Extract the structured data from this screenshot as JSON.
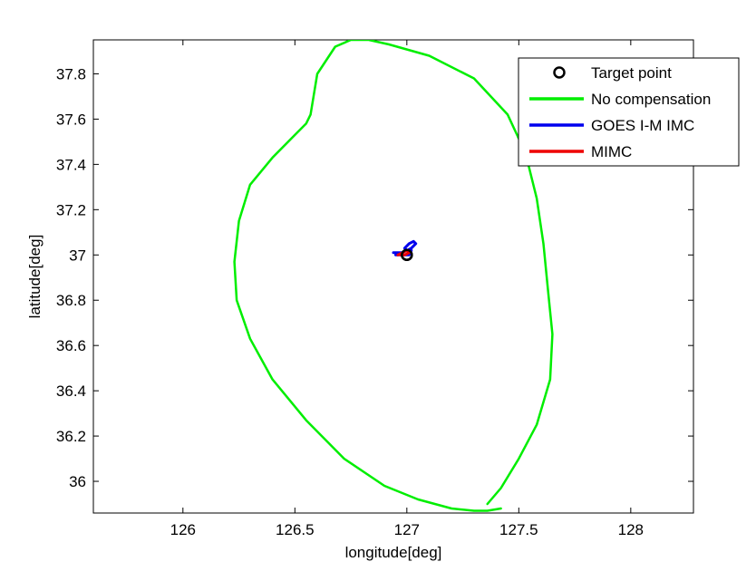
{
  "chart_data": {
    "type": "line",
    "title": "",
    "xlabel": "longitude[deg]",
    "ylabel": "latitude[deg]",
    "xlim": [
      125.6,
      128.28
    ],
    "ylim": [
      35.86,
      37.95
    ],
    "xticks": [
      126,
      126.5,
      127,
      127.5,
      128
    ],
    "xtick_labels": [
      "126",
      "126.5",
      "127",
      "127.5",
      "128"
    ],
    "yticks": [
      36,
      36.2,
      36.4,
      36.6,
      36.8,
      37,
      37.2,
      37.4,
      37.6,
      37.8
    ],
    "ytick_labels": [
      "36",
      "36.2",
      "36.4",
      "36.6",
      "36.8",
      "37",
      "37.2",
      "37.4",
      "37.6",
      "37.8"
    ],
    "grid": false,
    "legend_position": "top-right",
    "series": [
      {
        "name": "Target point",
        "kind": "marker",
        "color": "#000000",
        "x": [
          127.0
        ],
        "y": [
          37.0
        ]
      },
      {
        "name": "No compensation",
        "kind": "line",
        "color": "#00ee00",
        "x": [
          127.36,
          127.42,
          127.5,
          127.58,
          127.64,
          127.65,
          127.63,
          127.61,
          127.58,
          127.53,
          127.45,
          127.3,
          127.1,
          126.92,
          126.83,
          126.75,
          126.68,
          126.6,
          126.57,
          126.55,
          126.5,
          126.4,
          126.3,
          126.25,
          126.23,
          126.24,
          126.3,
          126.4,
          126.55,
          126.72,
          126.9,
          127.05,
          127.2,
          127.3,
          127.36,
          127.42
        ],
        "y": [
          35.9,
          35.97,
          36.1,
          36.25,
          36.45,
          36.65,
          36.85,
          37.05,
          37.25,
          37.45,
          37.62,
          37.78,
          37.88,
          37.93,
          37.95,
          37.95,
          37.92,
          37.8,
          37.62,
          37.58,
          37.53,
          37.43,
          37.31,
          37.15,
          36.97,
          36.8,
          36.63,
          36.45,
          36.27,
          36.1,
          35.98,
          35.92,
          35.88,
          35.87,
          35.87,
          35.88
        ]
      },
      {
        "name": "GOES I-M IMC",
        "kind": "line",
        "color": "#0000ee",
        "x": [
          126.94,
          126.98,
          127.02,
          127.04,
          127.03,
          127.01,
          126.99,
          127.0,
          127.02,
          127.01,
          126.98,
          126.95
        ],
        "y": [
          37.01,
          37.01,
          37.03,
          37.05,
          37.06,
          37.05,
          37.03,
          37.02,
          37.02,
          37.0,
          37.0,
          37.0
        ]
      },
      {
        "name": "MIMC",
        "kind": "line",
        "color": "#ee0000",
        "x": [
          126.96,
          126.98,
          127.0,
          127.01,
          126.99,
          126.97
        ],
        "y": [
          37.0,
          37.01,
          37.02,
          37.01,
          37.0,
          37.0
        ]
      }
    ]
  }
}
